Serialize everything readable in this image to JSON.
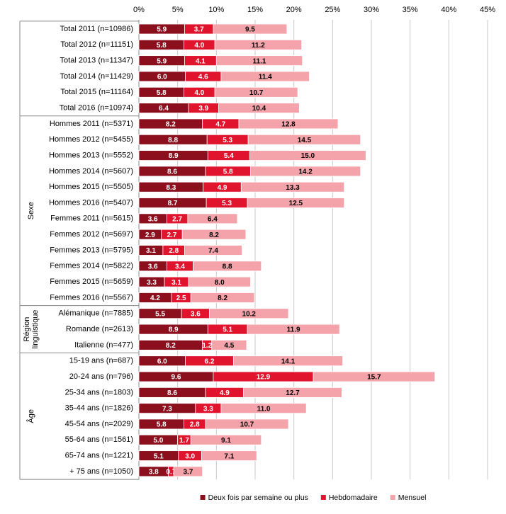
{
  "chart_data": {
    "type": "stacked-bar-horizontal",
    "groups": [
      {
        "label_lines": [],
        "categories": [
          "Total 2011 (n=10986)",
          "Total 2012 (n=11151)",
          "Total 2013 (n=11347)",
          "Total 2014 (n=11429)",
          "Total 2015 (n=11164)",
          "Total 2016 (n=10974)"
        ]
      },
      {
        "label_lines": [
          "Sexe"
        ],
        "categories": [
          "Hommes 2011 (n=5371)",
          "Hommes 2012 (n=5455)",
          "Hommes 2013 (n=5552)",
          "Hommes 2014 (n=5607)",
          "Hommes 2015 (n=5505)",
          "Hommes 2016 (n=5407)",
          "Femmes 2011 (n=5615)",
          "Femmes 2012 (n=5697)",
          "Femmes 2013 (n=5795)",
          "Femmes 2014 (n=5822)",
          "Femmes 2015 (n=5659)",
          "Femmes 2016 (n=5567)"
        ]
      },
      {
        "label_lines": [
          "Région",
          "linguistique"
        ],
        "categories": [
          "Alémanique (n=7885)",
          "Romande (n=2613)",
          "Italienne (n=477)"
        ]
      },
      {
        "label_lines": [
          "Âge"
        ],
        "categories": [
          "15-19 ans (n=687)",
          "20-24 ans (n=796)",
          "25-34 ans (n=1803)",
          "35-44 ans (n=1826)",
          "45-54 ans (n=2029)",
          "55-64 ans (n=1561)",
          "65-74 ans (n=1221)",
          "+ 75 ans (n=1050)"
        ]
      }
    ],
    "series": [
      {
        "name": "Deux fois par semaine ou plus",
        "color": "#8c0f1e",
        "label_color": "#ffffff",
        "values": [
          5.9,
          5.8,
          5.9,
          6.0,
          5.8,
          6.4,
          8.2,
          8.8,
          8.9,
          8.6,
          8.3,
          8.7,
          3.6,
          2.9,
          3.1,
          3.6,
          3.3,
          4.2,
          5.5,
          8.9,
          8.2,
          6.0,
          9.6,
          8.6,
          7.3,
          5.8,
          5.0,
          5.1,
          3.8
        ],
        "value_labels": [
          "5.9",
          "5.8",
          "5.9",
          "6.0",
          "5.8",
          "6.4",
          "8.2",
          "8.8",
          "8.9",
          "8.6",
          "8.3",
          "8.7",
          "3.6",
          "2.9",
          "3.1",
          "3.6",
          "3.3",
          "4.2",
          "5.5",
          "8.9",
          "8.2",
          "6.0",
          "9.6",
          "8.6",
          "7.3",
          "5.8",
          "5.0",
          "5.1",
          "3.8"
        ]
      },
      {
        "name": "Hebdomadaire",
        "color": "#e0142c",
        "label_color": "#ffffff",
        "values": [
          3.7,
          4.0,
          4.1,
          4.6,
          4.0,
          3.9,
          4.7,
          5.3,
          5.4,
          5.8,
          4.9,
          5.3,
          2.7,
          2.7,
          2.8,
          3.4,
          3.1,
          2.5,
          3.6,
          5.1,
          1.2,
          6.2,
          12.9,
          4.9,
          3.3,
          2.8,
          1.7,
          3.0,
          0.7
        ],
        "value_labels": [
          "3.7",
          "4.0",
          "4.1",
          "4.6",
          "4.0",
          "3.9",
          "4.7",
          "5.3",
          "5.4",
          "5.8",
          "4.9",
          "5.3",
          "2.7",
          "2.7",
          "2.8",
          "3.4",
          "3.1",
          "2.5",
          "3.6",
          "5.1",
          "1.2",
          "6.2",
          "12.9",
          "4.9",
          "3.3",
          "2.8",
          "1.7",
          "3.0",
          "0.7"
        ]
      },
      {
        "name": "Mensuel",
        "color": "#f5a3ab",
        "label_color": "#000000",
        "values": [
          9.5,
          11.2,
          11.1,
          11.4,
          10.7,
          10.4,
          12.8,
          14.5,
          15.0,
          14.2,
          13.3,
          12.5,
          6.4,
          8.2,
          7.4,
          8.8,
          8.0,
          8.2,
          10.2,
          11.9,
          4.5,
          14.1,
          15.7,
          12.7,
          11.0,
          10.7,
          9.1,
          7.1,
          3.7
        ],
        "value_labels": [
          "9.5",
          "11.2",
          "11.1",
          "11.4",
          "10.7",
          "10.4",
          "12.8",
          "14.5",
          "15.0",
          "14.2",
          "13.3",
          "12.5",
          "6.4",
          "8.2",
          "7.4",
          "8.8",
          "8.0",
          "8.2",
          "10.2",
          "11.9",
          "4.5",
          "14.1",
          "15.7",
          "12.7",
          "11.0",
          "10.7",
          "9.1",
          "7.1",
          "3.7"
        ]
      }
    ],
    "xlim": [
      0,
      45
    ],
    "xticks": [
      {
        "value": 0,
        "label": "0%"
      },
      {
        "value": 5,
        "label": "5%"
      },
      {
        "value": 10,
        "label": "10%"
      },
      {
        "value": 15,
        "label": "15%"
      },
      {
        "value": 20,
        "label": "20%"
      },
      {
        "value": 25,
        "label": "25%"
      },
      {
        "value": 30,
        "label": "30%"
      },
      {
        "value": 35,
        "label": "35%"
      },
      {
        "value": 40,
        "label": "40%"
      },
      {
        "value": 45,
        "label": "45%"
      }
    ],
    "grid": true,
    "legend": "bottom"
  }
}
